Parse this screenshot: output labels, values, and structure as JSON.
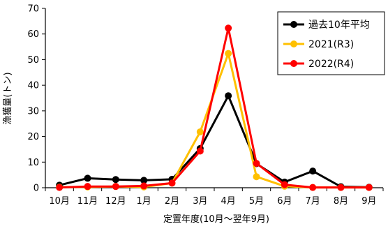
{
  "chart_data": {
    "type": "line",
    "title": "",
    "xlabel": "定置年度(10月～翌年9月)",
    "ylabel": "漁獲量(トン)",
    "categories": [
      "10月",
      "11月",
      "12月",
      "1月",
      "2月",
      "3月",
      "4月",
      "5月",
      "6月",
      "7月",
      "8月",
      "9月"
    ],
    "ylim": [
      0,
      70
    ],
    "yticks": [
      0,
      10,
      20,
      30,
      40,
      50,
      60,
      70
    ],
    "grid": false,
    "legend_position": "top-right",
    "series": [
      {
        "name": "過去10年平均",
        "color": "#000000",
        "values": [
          1.0,
          3.7,
          3.2,
          2.9,
          3.3,
          15.3,
          35.9,
          9.4,
          2.2,
          6.5,
          0.4,
          0.2
        ]
      },
      {
        "name": "2021(R3)",
        "color": "#FFC000",
        "values": [
          0.2,
          0.3,
          0.5,
          0.3,
          1.8,
          21.8,
          52.4,
          4.3,
          0.6,
          0.1,
          0.1,
          0.1
        ]
      },
      {
        "name": "2022(R4)",
        "color": "#FF0000",
        "values": [
          0.1,
          0.5,
          0.5,
          0.7,
          1.8,
          14.3,
          62.3,
          9.5,
          1.2,
          0.1,
          0.1,
          0.1
        ]
      }
    ]
  }
}
